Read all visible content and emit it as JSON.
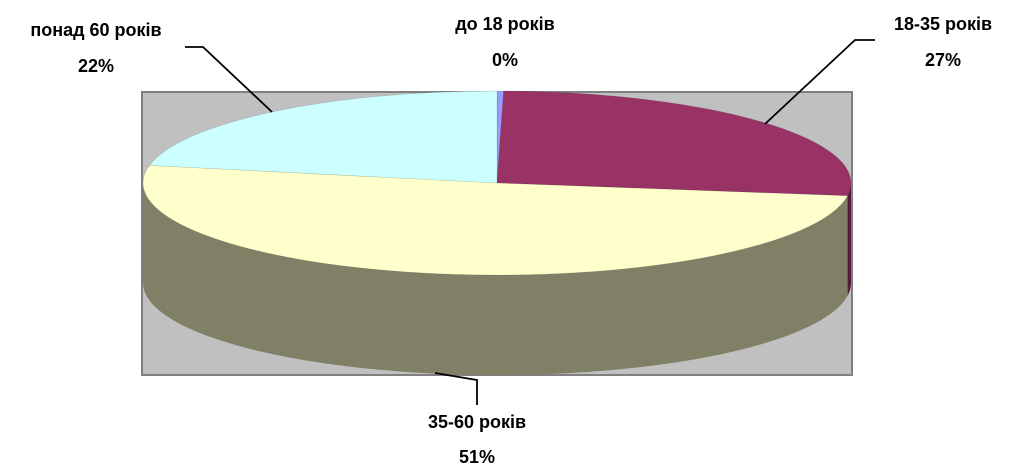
{
  "colors": {
    "plot_area": "#C0C0C0",
    "plot_border": "#808080",
    "side": "#808066",
    "leader": "#000000"
  },
  "chart_data": {
    "type": "pie",
    "three_d": true,
    "legend": "none",
    "slices": [
      {
        "label": "до 18 років",
        "value": 0.3,
        "display": "0%",
        "color": "#9999FF"
      },
      {
        "label": "18-35 років",
        "value": 27,
        "display": "27%",
        "color": "#993366"
      },
      {
        "label": "35-60 років",
        "value": 51,
        "display": "51%",
        "color": "#FFFFCC"
      },
      {
        "label": "понад 60 років",
        "value": 22,
        "display": "22%",
        "color": "#CCFFFF"
      }
    ]
  }
}
